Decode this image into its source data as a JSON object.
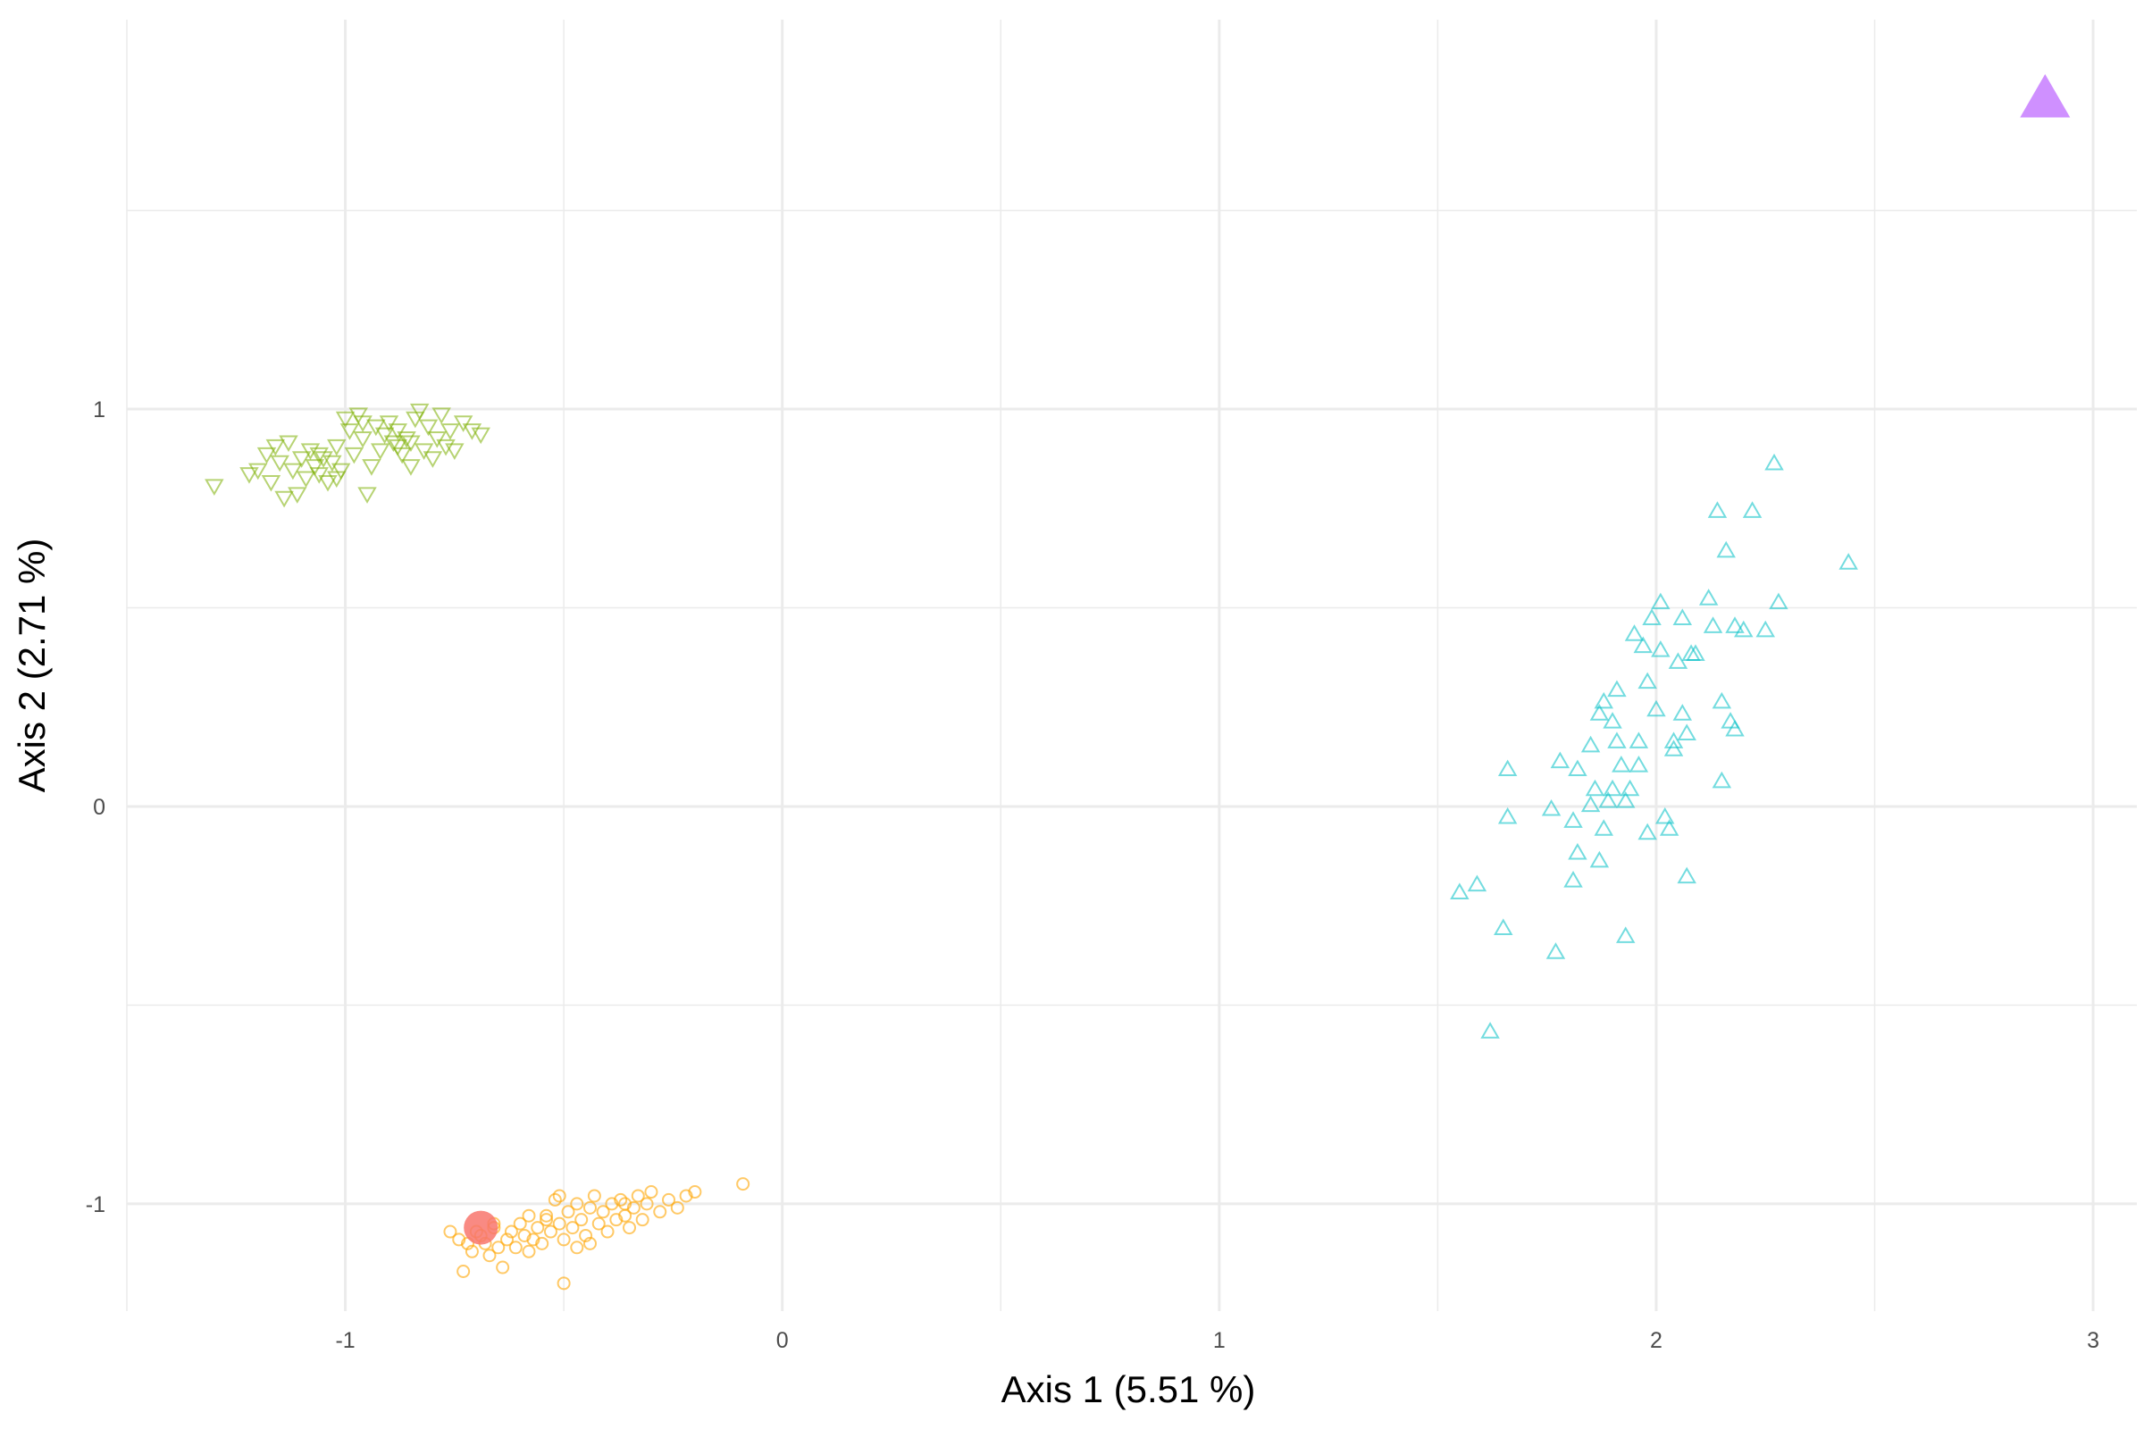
{
  "chart_data": {
    "type": "scatter",
    "xlabel": "Axis 1 (5.51 %)",
    "ylabel": "Axis 2 (2.71 %)",
    "xlim": [
      -1.5,
      3.1
    ],
    "ylim": [
      -1.27,
      1.98
    ],
    "x_ticks": [
      {
        "value": -1,
        "label": "-1"
      },
      {
        "value": 0,
        "label": "0"
      },
      {
        "value": 1,
        "label": "1"
      },
      {
        "value": 2,
        "label": "2"
      },
      {
        "value": 3,
        "label": "3"
      }
    ],
    "y_ticks": [
      {
        "value": -1,
        "label": "-1"
      },
      {
        "value": 0,
        "label": "0"
      },
      {
        "value": 1,
        "label": "1"
      }
    ],
    "grid": true,
    "legend": "none",
    "series": [
      {
        "marker": "triangle-down-open",
        "color": "#7CAE00",
        "points": [
          [
            -1.3,
            0.81
          ],
          [
            -1.22,
            0.84
          ],
          [
            -1.2,
            0.85
          ],
          [
            -1.18,
            0.89
          ],
          [
            -1.17,
            0.82
          ],
          [
            -1.16,
            0.91
          ],
          [
            -1.15,
            0.87
          ],
          [
            -1.14,
            0.78
          ],
          [
            -1.13,
            0.92
          ],
          [
            -1.12,
            0.85
          ],
          [
            -1.11,
            0.79
          ],
          [
            -1.1,
            0.88
          ],
          [
            -1.09,
            0.83
          ],
          [
            -1.08,
            0.9
          ],
          [
            -1.07,
            0.86
          ],
          [
            -1.06,
            0.84
          ],
          [
            -1.05,
            0.88
          ],
          [
            -1.04,
            0.82
          ],
          [
            -1.03,
            0.87
          ],
          [
            -1.02,
            0.91
          ],
          [
            -1.01,
            0.85
          ],
          [
            -1.0,
            0.98
          ],
          [
            -0.99,
            0.95
          ],
          [
            -0.98,
            0.89
          ],
          [
            -0.97,
            0.99
          ],
          [
            -0.96,
            0.93
          ],
          [
            -0.95,
            0.79
          ],
          [
            -0.94,
            0.86
          ],
          [
            -0.93,
            0.96
          ],
          [
            -0.92,
            0.9
          ],
          [
            -0.91,
            0.94
          ],
          [
            -0.9,
            0.97
          ],
          [
            -0.89,
            0.92
          ],
          [
            -0.88,
            0.95
          ],
          [
            -0.87,
            0.89
          ],
          [
            -0.86,
            0.93
          ],
          [
            -0.85,
            0.86
          ],
          [
            -0.84,
            0.98
          ],
          [
            -0.83,
            1.0
          ],
          [
            -0.82,
            0.9
          ],
          [
            -0.81,
            0.96
          ],
          [
            -0.8,
            0.88
          ],
          [
            -0.79,
            0.93
          ],
          [
            -0.78,
            0.99
          ],
          [
            -0.77,
            0.91
          ],
          [
            -0.76,
            0.95
          ],
          [
            -0.75,
            0.9
          ],
          [
            -0.73,
            0.97
          ],
          [
            -0.71,
            0.95
          ],
          [
            -0.69,
            0.94
          ],
          [
            -1.06,
            0.89
          ],
          [
            -0.88,
            0.91
          ],
          [
            -0.96,
            0.97
          ],
          [
            -1.02,
            0.83
          ],
          [
            -0.85,
            0.92
          ]
        ]
      },
      {
        "marker": "circle-open",
        "color": "#FFA500",
        "points": [
          [
            -0.76,
            -1.07
          ],
          [
            -0.74,
            -1.09
          ],
          [
            -0.73,
            -1.17
          ],
          [
            -0.72,
            -1.1
          ],
          [
            -0.71,
            -1.12
          ],
          [
            -0.7,
            -1.07
          ],
          [
            -0.69,
            -1.08
          ],
          [
            -0.68,
            -1.1
          ],
          [
            -0.67,
            -1.13
          ],
          [
            -0.66,
            -1.06
          ],
          [
            -0.65,
            -1.11
          ],
          [
            -0.64,
            -1.16
          ],
          [
            -0.63,
            -1.09
          ],
          [
            -0.62,
            -1.07
          ],
          [
            -0.61,
            -1.11
          ],
          [
            -0.6,
            -1.05
          ],
          [
            -0.59,
            -1.08
          ],
          [
            -0.58,
            -1.03
          ],
          [
            -0.57,
            -1.09
          ],
          [
            -0.56,
            -1.06
          ],
          [
            -0.55,
            -1.1
          ],
          [
            -0.54,
            -1.04
          ],
          [
            -0.53,
            -1.07
          ],
          [
            -0.52,
            -0.99
          ],
          [
            -0.51,
            -1.05
          ],
          [
            -0.5,
            -1.09
          ],
          [
            -0.49,
            -1.02
          ],
          [
            -0.48,
            -1.06
          ],
          [
            -0.47,
            -1.0
          ],
          [
            -0.46,
            -1.04
          ],
          [
            -0.45,
            -1.08
          ],
          [
            -0.44,
            -1.01
          ],
          [
            -0.43,
            -0.98
          ],
          [
            -0.42,
            -1.05
          ],
          [
            -0.41,
            -1.02
          ],
          [
            -0.4,
            -1.07
          ],
          [
            -0.39,
            -1.0
          ],
          [
            -0.38,
            -1.04
          ],
          [
            -0.37,
            -0.99
          ],
          [
            -0.36,
            -1.03
          ],
          [
            -0.35,
            -1.06
          ],
          [
            -0.34,
            -1.01
          ],
          [
            -0.33,
            -0.98
          ],
          [
            -0.32,
            -1.04
          ],
          [
            -0.31,
            -1.0
          ],
          [
            -0.3,
            -0.97
          ],
          [
            -0.28,
            -1.02
          ],
          [
            -0.26,
            -0.99
          ],
          [
            -0.24,
            -1.01
          ],
          [
            -0.22,
            -0.98
          ],
          [
            -0.2,
            -0.97
          ],
          [
            -0.09,
            -0.95
          ],
          [
            -0.5,
            -1.2
          ],
          [
            -0.66,
            -1.05
          ],
          [
            -0.58,
            -1.12
          ],
          [
            -0.47,
            -1.11
          ],
          [
            -0.54,
            -1.03
          ],
          [
            -0.44,
            -1.1
          ],
          [
            -0.36,
            -1.0
          ],
          [
            -0.51,
            -0.98
          ]
        ]
      },
      {
        "marker": "triangle-up-open",
        "color": "#00BFC4",
        "points": [
          [
            1.55,
            -0.22
          ],
          [
            1.59,
            -0.2
          ],
          [
            1.62,
            -0.57
          ],
          [
            1.65,
            -0.31
          ],
          [
            1.66,
            0.09
          ],
          [
            1.66,
            -0.03
          ],
          [
            1.76,
            -0.01
          ],
          [
            1.77,
            -0.37
          ],
          [
            1.78,
            0.11
          ],
          [
            1.81,
            -0.19
          ],
          [
            1.81,
            -0.04
          ],
          [
            1.82,
            0.09
          ],
          [
            1.82,
            -0.12
          ],
          [
            1.85,
            0.15
          ],
          [
            1.85,
            0.0
          ],
          [
            1.86,
            0.04
          ],
          [
            1.87,
            -0.14
          ],
          [
            1.87,
            0.23
          ],
          [
            1.88,
            -0.06
          ],
          [
            1.88,
            0.26
          ],
          [
            1.89,
            0.01
          ],
          [
            1.9,
            0.04
          ],
          [
            1.9,
            0.21
          ],
          [
            1.91,
            0.29
          ],
          [
            1.91,
            0.16
          ],
          [
            1.92,
            0.1
          ],
          [
            1.93,
            -0.33
          ],
          [
            1.93,
            0.01
          ],
          [
            1.94,
            0.04
          ],
          [
            1.95,
            0.43
          ],
          [
            1.96,
            0.16
          ],
          [
            1.96,
            0.1
          ],
          [
            1.97,
            0.4
          ],
          [
            1.98,
            0.31
          ],
          [
            1.98,
            -0.07
          ],
          [
            1.99,
            0.47
          ],
          [
            2.0,
            0.24
          ],
          [
            2.01,
            0.51
          ],
          [
            2.01,
            0.39
          ],
          [
            2.02,
            -0.03
          ],
          [
            2.03,
            -0.06
          ],
          [
            2.04,
            0.16
          ],
          [
            2.04,
            0.14
          ],
          [
            2.05,
            0.36
          ],
          [
            2.06,
            0.47
          ],
          [
            2.06,
            0.23
          ],
          [
            2.07,
            0.18
          ],
          [
            2.07,
            -0.18
          ],
          [
            2.08,
            0.38
          ],
          [
            2.09,
            0.38
          ],
          [
            2.12,
            0.52
          ],
          [
            2.13,
            0.45
          ],
          [
            2.14,
            0.74
          ],
          [
            2.15,
            0.26
          ],
          [
            2.15,
            0.06
          ],
          [
            2.16,
            0.64
          ],
          [
            2.17,
            0.21
          ],
          [
            2.18,
            0.19
          ],
          [
            2.18,
            0.45
          ],
          [
            2.2,
            0.44
          ],
          [
            2.22,
            0.74
          ],
          [
            2.25,
            0.44
          ],
          [
            2.27,
            0.86
          ],
          [
            2.28,
            0.51
          ],
          [
            2.44,
            0.61
          ]
        ]
      },
      {
        "marker": "circle-filled",
        "color": "#F8766D",
        "size": "large",
        "points": [
          [
            -0.69,
            -1.06
          ]
        ]
      },
      {
        "marker": "triangle-up-filled",
        "color": "#C77CFF",
        "size": "large",
        "points": [
          [
            2.89,
            1.77
          ]
        ]
      }
    ]
  }
}
